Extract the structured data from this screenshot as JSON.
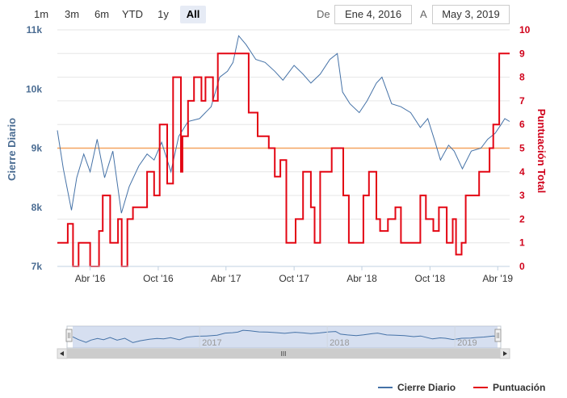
{
  "range_selector": {
    "buttons": [
      "1m",
      "3m",
      "6m",
      "YTD",
      "1y",
      "All"
    ],
    "active": "All",
    "from_label": "De",
    "from_value": "Ene 4, 2016",
    "to_label": "A",
    "to_value": "May 3, 2019"
  },
  "navigator": {
    "labels": [
      "2017",
      "2018",
      "2019"
    ],
    "scrollbar_glyph": "III"
  },
  "colors": {
    "price": "#4572a7",
    "score": "#e30613",
    "reference": "#f4a460",
    "left_axis": "#4a6c92",
    "right_axis": "#d0021b"
  },
  "chart_data": {
    "type": "line",
    "x_ticks": [
      "Abr '16",
      "Oct '16",
      "Abr '17",
      "Oct '17",
      "Abr '18",
      "Oct '18",
      "Abr '19"
    ],
    "x_range": [
      "2016-01-04",
      "2019-05-03"
    ],
    "y_left": {
      "label": "Cierre Diario",
      "ticks": [
        "7k",
        "8k",
        "9k",
        "10k",
        "11k"
      ],
      "range": [
        7000,
        11000
      ]
    },
    "y_right": {
      "label": "Puntuación Total",
      "ticks": [
        "0",
        "1",
        "2",
        "3",
        "4",
        "5",
        "6",
        "7",
        "8",
        "9",
        "10"
      ],
      "range": [
        0,
        10
      ]
    },
    "reference_line": 9000,
    "grid": "horizontal",
    "legend_position": "bottom-right",
    "series": [
      {
        "name": "Cierre Diario",
        "axis": "left",
        "points": [
          [
            "2016-01-04",
            9300
          ],
          [
            "2016-01-20",
            8650
          ],
          [
            "2016-02-11",
            7950
          ],
          [
            "2016-02-25",
            8500
          ],
          [
            "2016-03-15",
            8900
          ],
          [
            "2016-04-01",
            8600
          ],
          [
            "2016-04-20",
            9150
          ],
          [
            "2016-05-10",
            8500
          ],
          [
            "2016-06-01",
            8950
          ],
          [
            "2016-06-24",
            7900
          ],
          [
            "2016-07-15",
            8350
          ],
          [
            "2016-08-10",
            8700
          ],
          [
            "2016-09-01",
            8900
          ],
          [
            "2016-09-20",
            8800
          ],
          [
            "2016-10-10",
            9100
          ],
          [
            "2016-11-04",
            8600
          ],
          [
            "2016-11-25",
            9200
          ],
          [
            "2016-12-20",
            9450
          ],
          [
            "2017-01-20",
            9500
          ],
          [
            "2017-02-20",
            9700
          ],
          [
            "2017-03-15",
            10200
          ],
          [
            "2017-04-05",
            10300
          ],
          [
            "2017-04-20",
            10450
          ],
          [
            "2017-05-05",
            10900
          ],
          [
            "2017-05-25",
            10750
          ],
          [
            "2017-06-20",
            10500
          ],
          [
            "2017-07-15",
            10450
          ],
          [
            "2017-08-10",
            10300
          ],
          [
            "2017-09-01",
            10150
          ],
          [
            "2017-10-01",
            10400
          ],
          [
            "2017-10-25",
            10250
          ],
          [
            "2017-11-15",
            10100
          ],
          [
            "2017-12-10",
            10250
          ],
          [
            "2018-01-05",
            10500
          ],
          [
            "2018-01-25",
            10600
          ],
          [
            "2018-02-08",
            9950
          ],
          [
            "2018-02-28",
            9750
          ],
          [
            "2018-03-25",
            9600
          ],
          [
            "2018-04-15",
            9800
          ],
          [
            "2018-05-10",
            10100
          ],
          [
            "2018-05-25",
            10200
          ],
          [
            "2018-06-20",
            9750
          ],
          [
            "2018-07-15",
            9700
          ],
          [
            "2018-08-10",
            9600
          ],
          [
            "2018-09-05",
            9350
          ],
          [
            "2018-09-25",
            9500
          ],
          [
            "2018-10-15",
            9100
          ],
          [
            "2018-10-29",
            8800
          ],
          [
            "2018-11-20",
            9050
          ],
          [
            "2018-12-05",
            8950
          ],
          [
            "2018-12-27",
            8650
          ],
          [
            "2019-01-20",
            8950
          ],
          [
            "2019-02-15",
            9000
          ],
          [
            "2019-03-05",
            9150
          ],
          [
            "2019-03-25",
            9250
          ],
          [
            "2019-04-10",
            9400
          ],
          [
            "2019-04-20",
            9500
          ],
          [
            "2019-05-03",
            9450
          ]
        ]
      },
      {
        "name": "Puntuación",
        "axis": "right",
        "points": [
          [
            "2016-01-04",
            1
          ],
          [
            "2016-02-01",
            1
          ],
          [
            "2016-02-01",
            1.8
          ],
          [
            "2016-02-15",
            1.8
          ],
          [
            "2016-02-15",
            0
          ],
          [
            "2016-03-01",
            0
          ],
          [
            "2016-03-01",
            1
          ],
          [
            "2016-04-01",
            1
          ],
          [
            "2016-04-01",
            0
          ],
          [
            "2016-04-25",
            0
          ],
          [
            "2016-04-25",
            1.5
          ],
          [
            "2016-05-05",
            1.5
          ],
          [
            "2016-05-05",
            3
          ],
          [
            "2016-05-25",
            3
          ],
          [
            "2016-05-25",
            1
          ],
          [
            "2016-06-15",
            1
          ],
          [
            "2016-06-15",
            2
          ],
          [
            "2016-06-25",
            2
          ],
          [
            "2016-06-25",
            0
          ],
          [
            "2016-07-10",
            0
          ],
          [
            "2016-07-10",
            2
          ],
          [
            "2016-07-25",
            2
          ],
          [
            "2016-07-25",
            2.5
          ],
          [
            "2016-09-01",
            2.5
          ],
          [
            "2016-09-01",
            4
          ],
          [
            "2016-09-20",
            4
          ],
          [
            "2016-09-20",
            3
          ],
          [
            "2016-10-05",
            3
          ],
          [
            "2016-10-05",
            6
          ],
          [
            "2016-10-25",
            6
          ],
          [
            "2016-10-25",
            3.5
          ],
          [
            "2016-11-10",
            3.5
          ],
          [
            "2016-11-10",
            8
          ],
          [
            "2016-12-01",
            8
          ],
          [
            "2016-12-01",
            4
          ],
          [
            "2016-12-05",
            4
          ],
          [
            "2016-12-05",
            5.5
          ],
          [
            "2016-12-20",
            5.5
          ],
          [
            "2016-12-20",
            7
          ],
          [
            "2017-01-05",
            7
          ],
          [
            "2017-01-05",
            8
          ],
          [
            "2017-01-25",
            8
          ],
          [
            "2017-01-25",
            7
          ],
          [
            "2017-02-05",
            7
          ],
          [
            "2017-02-05",
            8
          ],
          [
            "2017-02-25",
            8
          ],
          [
            "2017-02-25",
            7
          ],
          [
            "2017-03-10",
            7
          ],
          [
            "2017-03-10",
            9
          ],
          [
            "2017-06-01",
            9
          ],
          [
            "2017-06-01",
            6.5
          ],
          [
            "2017-06-25",
            6.5
          ],
          [
            "2017-06-25",
            5.5
          ],
          [
            "2017-07-25",
            5.5
          ],
          [
            "2017-07-25",
            5
          ],
          [
            "2017-08-10",
            5
          ],
          [
            "2017-08-10",
            3.8
          ],
          [
            "2017-08-25",
            3.8
          ],
          [
            "2017-08-25",
            4.5
          ],
          [
            "2017-09-10",
            4.5
          ],
          [
            "2017-09-10",
            1
          ],
          [
            "2017-10-05",
            1
          ],
          [
            "2017-10-05",
            2
          ],
          [
            "2017-10-25",
            2
          ],
          [
            "2017-10-25",
            4
          ],
          [
            "2017-11-15",
            4
          ],
          [
            "2017-11-15",
            2.5
          ],
          [
            "2017-11-25",
            2.5
          ],
          [
            "2017-11-25",
            1
          ],
          [
            "2017-12-10",
            1
          ],
          [
            "2017-12-10",
            4
          ],
          [
            "2018-01-10",
            4
          ],
          [
            "2018-01-10",
            5
          ],
          [
            "2018-02-10",
            5
          ],
          [
            "2018-02-10",
            3
          ],
          [
            "2018-02-25",
            3
          ],
          [
            "2018-02-25",
            1
          ],
          [
            "2018-04-05",
            1
          ],
          [
            "2018-04-05",
            3
          ],
          [
            "2018-04-20",
            3
          ],
          [
            "2018-04-20",
            4
          ],
          [
            "2018-05-10",
            4
          ],
          [
            "2018-05-10",
            2
          ],
          [
            "2018-05-20",
            2
          ],
          [
            "2018-05-20",
            1.5
          ],
          [
            "2018-06-10",
            1.5
          ],
          [
            "2018-06-10",
            2
          ],
          [
            "2018-06-30",
            2
          ],
          [
            "2018-06-30",
            2.5
          ],
          [
            "2018-07-15",
            2.5
          ],
          [
            "2018-07-15",
            1
          ],
          [
            "2018-09-05",
            1
          ],
          [
            "2018-09-05",
            3
          ],
          [
            "2018-09-20",
            3
          ],
          [
            "2018-09-20",
            2
          ],
          [
            "2018-10-10",
            2
          ],
          [
            "2018-10-10",
            1.5
          ],
          [
            "2018-10-25",
            1.5
          ],
          [
            "2018-10-25",
            2.5
          ],
          [
            "2018-11-15",
            2.5
          ],
          [
            "2018-11-15",
            1
          ],
          [
            "2018-12-01",
            1
          ],
          [
            "2018-12-01",
            2
          ],
          [
            "2018-12-10",
            2
          ],
          [
            "2018-12-10",
            0.5
          ],
          [
            "2018-12-25",
            0.5
          ],
          [
            "2018-12-25",
            1
          ],
          [
            "2019-01-05",
            1
          ],
          [
            "2019-01-05",
            3
          ],
          [
            "2019-02-10",
            3
          ],
          [
            "2019-02-10",
            4
          ],
          [
            "2019-03-10",
            4
          ],
          [
            "2019-03-10",
            5
          ],
          [
            "2019-03-20",
            5
          ],
          [
            "2019-03-20",
            6
          ],
          [
            "2019-04-05",
            6
          ],
          [
            "2019-04-05",
            9
          ],
          [
            "2019-05-03",
            9
          ]
        ]
      }
    ]
  }
}
